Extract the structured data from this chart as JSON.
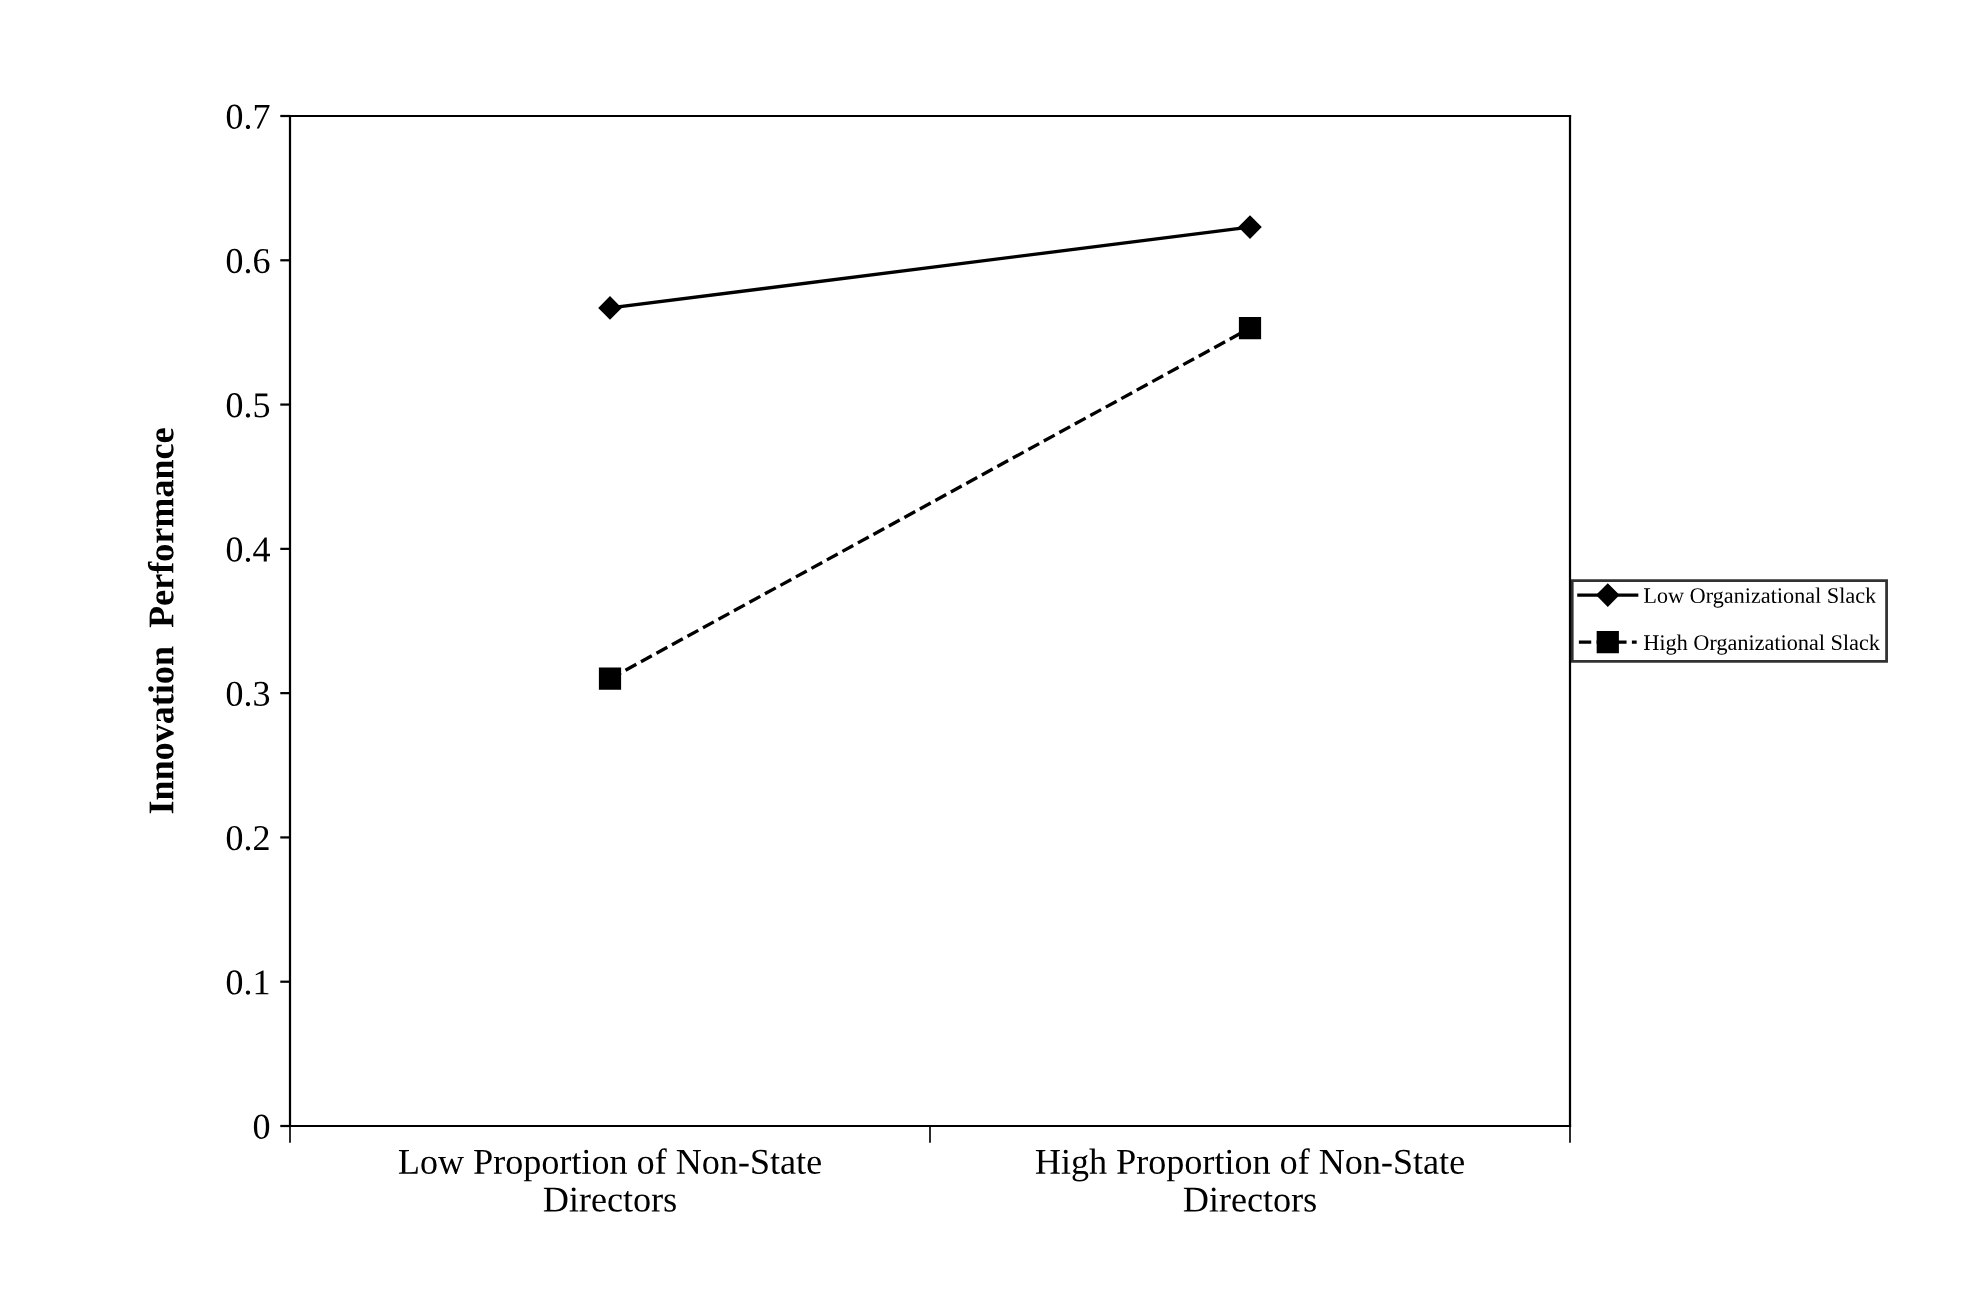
{
  "chart_data": {
    "type": "line",
    "ylabel": "Innovation  Performance",
    "categories": [
      "Low Proportion of Non-State\nDirectors",
      "High Proportion of Non-State\nDirectors"
    ],
    "series": [
      {
        "name": "Low Organizational Slack",
        "color": "#000000",
        "values": [
          0.567,
          0.623
        ],
        "marker": "diamond",
        "line_style": "solid"
      },
      {
        "name": "High Organizational Slack",
        "color": "#000000",
        "values": [
          0.31,
          0.553
        ],
        "marker": "square",
        "line_style": "dashed"
      }
    ],
    "ylim": [
      0,
      0.7
    ],
    "yticks": [
      0,
      0.1,
      0.2,
      0.3,
      0.4,
      0.5,
      0.6,
      0.7
    ],
    "grid": false,
    "legend": "right"
  }
}
